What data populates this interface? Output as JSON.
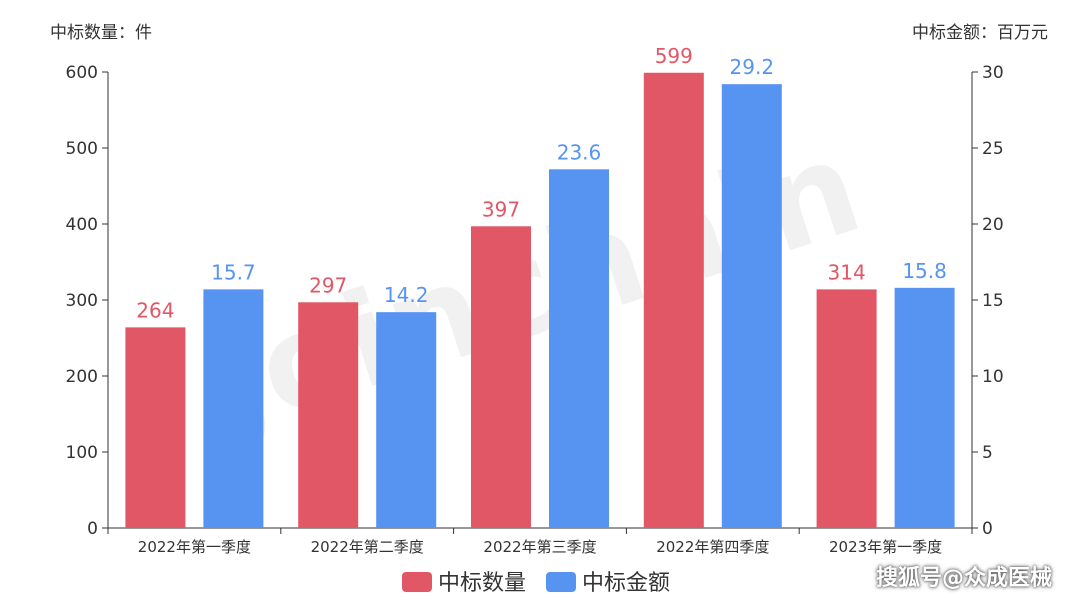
{
  "chart_data": {
    "type": "bar",
    "categories": [
      "2022年第一季度",
      "2022年第二季度",
      "2022年第三季度",
      "2022年第四季度",
      "2023年第一季度"
    ],
    "series": [
      {
        "name": "中标数量",
        "axis": "left",
        "color": "#e15766",
        "values": [
          264,
          297,
          397,
          599,
          314
        ]
      },
      {
        "name": "中标金额",
        "axis": "right",
        "color": "#5794f2",
        "values": [
          15.7,
          14.2,
          23.6,
          29.2,
          15.8
        ]
      }
    ],
    "ylabel_left": "中标数量：件",
    "ylabel_right": "中标金额：百万元",
    "ylim_left": [
      0,
      600
    ],
    "ylim_right": [
      0,
      30
    ],
    "yticks_left": [
      "0",
      "100",
      "200",
      "300",
      "400",
      "500",
      "600"
    ],
    "yticks_right": [
      "0",
      "5",
      "10",
      "15",
      "20",
      "25",
      "30"
    ],
    "data_labels_left": [
      "264",
      "297",
      "397",
      "599",
      "314"
    ],
    "data_labels_right": [
      "15.7",
      "14.2",
      "23.6",
      "29.2",
      "15.8"
    ],
    "legend_position": "bottom-center",
    "grid": false
  },
  "watermark": "Joinchain",
  "credit": "搜狐号@众成医械"
}
